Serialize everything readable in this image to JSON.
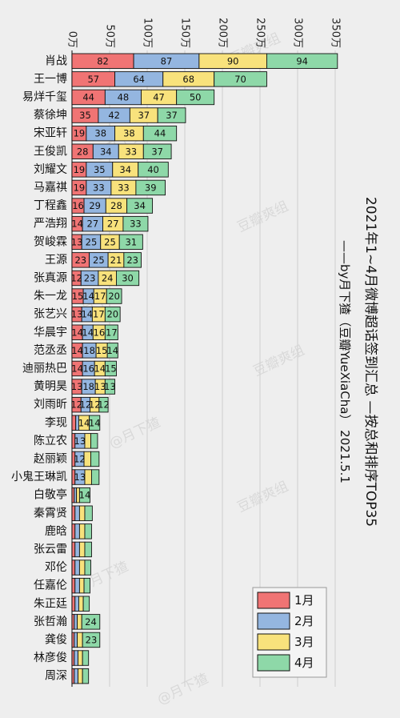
{
  "chart_data": {
    "type": "bar",
    "orientation": "horizontal",
    "stacked": true,
    "title": "2021年1~4月微博超话签到汇总 —按总和排序TOP35",
    "subtitle": "——by月下猹（豆瓣YueXiaCha） 2021.5.1",
    "x_ticks": [
      "0万",
      "50万",
      "100万",
      "150万",
      "200万",
      "250万",
      "300万",
      "350万"
    ],
    "xlim": [
      0,
      350
    ],
    "x_unit": "万",
    "grid": true,
    "legend_position": "bottom-right",
    "categories": [
      "肖战",
      "王一博",
      "易烊千玺",
      "蔡徐坤",
      "宋亚轩",
      "王俊凯",
      "刘耀文",
      "马嘉祺",
      "丁程鑫",
      "严浩翔",
      "贺峻霖",
      "王源",
      "张真源",
      "朱一龙",
      "张艺兴",
      "华晨宇",
      "范丞丞",
      "迪丽热巴",
      "黄明昊",
      "刘雨昕",
      "李现",
      "陈立农",
      "赵丽颖",
      "小鬼王琳凯",
      "白敬亭",
      "秦霄贤",
      "鹿晗",
      "张云雷",
      "邓伦",
      "任嘉伦",
      "朱正廷",
      "张哲瀚",
      "龚俊",
      "林彦俊",
      "周深"
    ],
    "series": [
      {
        "name": "1月",
        "color": "#f07474",
        "values": [
          82,
          57,
          44,
          35,
          19,
          28,
          19,
          19,
          16,
          14,
          13,
          23,
          12,
          15,
          13,
          14,
          14,
          14,
          13,
          12,
          5,
          4,
          4,
          4,
          3,
          4,
          4,
          4,
          4,
          4,
          4,
          3,
          3,
          3,
          3
        ]
      },
      {
        "name": "2月",
        "color": "#94b6e0",
        "values": [
          87,
          64,
          48,
          42,
          38,
          34,
          35,
          33,
          29,
          27,
          25,
          25,
          23,
          14,
          14,
          14,
          18,
          16,
          18,
          12,
          4,
          13,
          12,
          13,
          3,
          6,
          6,
          6,
          6,
          6,
          5,
          4,
          4,
          5,
          5
        ]
      },
      {
        "name": "3月",
        "color": "#f8e27c",
        "values": [
          90,
          68,
          47,
          37,
          38,
          33,
          34,
          33,
          28,
          27,
          25,
          21,
          24,
          17,
          17,
          16,
          15,
          14,
          13,
          12,
          14,
          8,
          9,
          9,
          4,
          7,
          7,
          7,
          7,
          6,
          6,
          6,
          7,
          6,
          6
        ]
      },
      {
        "name": "4月",
        "color": "#8ed8a8",
        "values": [
          94,
          70,
          50,
          37,
          44,
          37,
          40,
          39,
          34,
          33,
          31,
          23,
          30,
          20,
          20,
          17,
          14,
          15,
          13,
          12,
          14,
          9,
          11,
          10,
          14,
          10,
          9,
          9,
          8,
          8,
          8,
          24,
          23,
          8,
          8
        ]
      }
    ],
    "data_labels": [
      [
        "82",
        "87",
        "90",
        "94"
      ],
      [
        "57",
        "64",
        "68",
        "70"
      ],
      [
        "44",
        "48",
        "47",
        "50"
      ],
      [
        "35",
        "42",
        "37",
        "37"
      ],
      [
        "19",
        "38",
        "38",
        "44"
      ],
      [
        "28",
        "34",
        "33",
        "37"
      ],
      [
        "19",
        "35",
        "34",
        "40"
      ],
      [
        "19",
        "33",
        "33",
        "39"
      ],
      [
        "16",
        "29",
        "28",
        "34"
      ],
      [
        "14",
        "27",
        "27",
        "33"
      ],
      [
        "13",
        "25",
        "25",
        "31"
      ],
      [
        "23",
        "25",
        "21",
        "23"
      ],
      [
        "12",
        "23",
        "24",
        "30"
      ],
      [
        "15",
        "14",
        "17",
        "20"
      ],
      [
        "13",
        "14",
        "17",
        "20"
      ],
      [
        "14",
        "14",
        "16",
        "17"
      ],
      [
        "14",
        "18",
        "15",
        "14"
      ],
      [
        "14",
        "16",
        "14",
        "15"
      ],
      [
        "13",
        "18",
        "13",
        "13"
      ],
      [
        "12",
        "12",
        "12",
        "12"
      ],
      [
        "",
        "",
        "14",
        "14"
      ],
      [
        "",
        "13",
        "",
        ""
      ],
      [
        "",
        "12",
        "",
        ""
      ],
      [
        "",
        "13",
        "",
        ""
      ],
      [
        "",
        "",
        "",
        "14"
      ],
      [
        "",
        "",
        "",
        ""
      ],
      [
        "",
        "",
        "",
        ""
      ],
      [
        "",
        "",
        "",
        ""
      ],
      [
        "",
        "",
        "",
        ""
      ],
      [
        "",
        "",
        "",
        ""
      ],
      [
        "",
        "",
        "",
        ""
      ],
      [
        "",
        "",
        "",
        "24"
      ],
      [
        "",
        "",
        "",
        "23"
      ],
      [
        "",
        "",
        "",
        ""
      ],
      [
        "",
        "",
        "",
        ""
      ]
    ]
  },
  "watermarks": [
    "豆瓣爽组",
    "@月下猹"
  ]
}
